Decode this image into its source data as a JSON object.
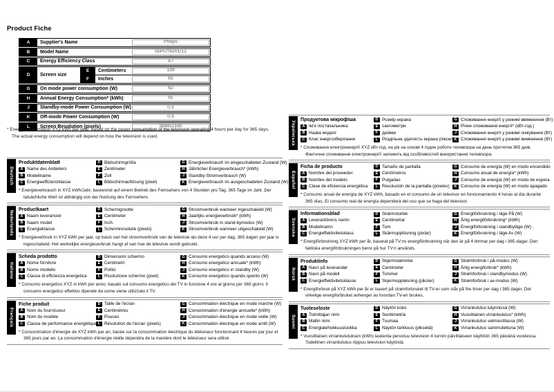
{
  "page": {
    "title": "Product Fiche"
  },
  "fiche_table": {
    "rows": [
      {
        "letter": "A",
        "label": "Supplier's Name",
        "value": "Philips"
      },
      {
        "letter": "B",
        "label": "Model Name",
        "value": "55PUT6201/12"
      },
      {
        "letter": "C",
        "label": "Energy Efficiency Class",
        "value": "A+"
      },
      {
        "letter": "D",
        "label": "Screen size",
        "sub": [
          {
            "letter": "E",
            "label": "Centimeters",
            "value": "139"
          },
          {
            "letter": "F",
            "label": "Inches",
            "value": "55"
          }
        ]
      },
      {
        "letter": "G",
        "label": "On mode power consumption (W)",
        "value": "62"
      },
      {
        "letter": "H",
        "label": "Annual Energy Consumption* (kWh)",
        "value": "91"
      },
      {
        "letter": "J",
        "label": "Standby-mode Power Consumption (W)",
        "value": "0.3"
      },
      {
        "letter": "K",
        "label": "Off-mode Power Consumption (W)",
        "value": "0.3"
      },
      {
        "letter": "L",
        "label": "Screen Resolution (pixels)",
        "value": "3840x2160"
      }
    ]
  },
  "footnote": {
    "line1": "* Energy consumption XYZ kWh per year, based on the power consumption of the television operating 4 hours per day for 365 days.",
    "line2": "The actual energy consumption will depend on how the television is used."
  },
  "sections": {
    "left": [
      {
        "language": "Deutsch",
        "title": "Produktdatenblatt",
        "col1": [
          {
            "letter": "A",
            "label": "Name des Anbieters"
          },
          {
            "letter": "B",
            "label": "Modellname"
          },
          {
            "letter": "C",
            "label": "Energieeffizienzklasse"
          }
        ],
        "col2": [
          {
            "letter": "D",
            "label": "Bildschirmgröße"
          },
          {
            "letter": "E",
            "label": "Zentimeter"
          },
          {
            "letter": "F",
            "label": "Zoll"
          },
          {
            "letter": "L",
            "label": "Bildschirmauflösung (pixel)"
          }
        ],
        "col3": [
          {
            "letter": "G",
            "label": "Energieverbrauch im eingeschalteten Zustand (W)"
          },
          {
            "letter": "H",
            "label": "Jährlicher Energieverbrauch* (kWh)"
          },
          {
            "letter": "J",
            "label": "Standby-Stromverbrauch (W)"
          },
          {
            "letter": "K",
            "label": "Energieverbrauch im ausgeschalteten Zustand (W)"
          }
        ],
        "footnote": "* Energieverbrauch in XYZ kWh/Jahr, basierend auf einem Betrieb des Fernsehers von 4 Stunden pro Tag, 365 Tage im Jahr. Der tatsächliche Wert ist abhängig von der Nutzung des Fernsehers."
      },
      {
        "language": "Nederlands",
        "title": "Productkaart",
        "col1": [
          {
            "letter": "A",
            "label": "Naam leverancier"
          },
          {
            "letter": "B",
            "label": "Naam model"
          },
          {
            "letter": "C",
            "label": "Energieklasse"
          }
        ],
        "col2": [
          {
            "letter": "D",
            "label": "Schermgrootte"
          },
          {
            "letter": "E",
            "label": "Centimeter"
          },
          {
            "letter": "F",
            "label": "Inch"
          },
          {
            "letter": "L",
            "label": "Schermresolutie (pixels)"
          }
        ],
        "col3": [
          {
            "letter": "G",
            "label": "Stroomverbruik wanneer ingeschakeld (W)"
          },
          {
            "letter": "H",
            "label": "Jaarlijks energieverbruik* (kWh)"
          },
          {
            "letter": "J",
            "label": "Stroomverbruik in stand-bymodus (W)"
          },
          {
            "letter": "K",
            "label": "Stroomverbruik wanneer uitgeschakeld (W)"
          }
        ],
        "footnote": "* Energieverbruik in XYZ kWh per jaar, op basis van het stroomverbruik van de televisie als deze 4 uur per dag, 365 dagen per jaar is ingeschakeld. Het werkelijke energieverbruik hangt af van hoe de televisie wordt gebruikt."
      },
      {
        "language": "Italiano",
        "title": "Scheda prodotto",
        "col1": [
          {
            "letter": "A",
            "label": "Nome fornitore"
          },
          {
            "letter": "B",
            "label": "Nome modello"
          },
          {
            "letter": "C",
            "label": "Classe di efficienza energetica"
          }
        ],
        "col2": [
          {
            "letter": "D",
            "label": "Dimensioni schermo"
          },
          {
            "letter": "E",
            "label": "Centimetri"
          },
          {
            "letter": "F",
            "label": "Pollici"
          },
          {
            "letter": "L",
            "label": "Risoluzione schermo (pixel)"
          }
        ],
        "col3": [
          {
            "letter": "G",
            "label": "Consumo energetico quando acceso (W)"
          },
          {
            "letter": "H",
            "label": "Consumo energetico annuale* (kWh)"
          },
          {
            "letter": "J",
            "label": "Consumo energetico in standby (W)"
          },
          {
            "letter": "K",
            "label": "Consumo energetico quando spento (W)"
          }
        ],
        "footnote": "* Consumo energetico XYZ in kWh per anno, basato sul consumo energetico del TV in funzione 4 ore al giorno per 365 giorni. Il consumo energetico effettivo dipende da come viene utilizzato il TV."
      },
      {
        "language": "Français",
        "title": "Fiche produit",
        "col1": [
          {
            "letter": "A",
            "label": "Nom du fournisseur"
          },
          {
            "letter": "B",
            "label": "Nom du modèle"
          },
          {
            "letter": "C",
            "label": "Classe de performance énergétique"
          }
        ],
        "col2": [
          {
            "letter": "D",
            "label": "Taille de l'écran"
          },
          {
            "letter": "E",
            "label": "Centimètres"
          },
          {
            "letter": "F",
            "label": "Pouces"
          },
          {
            "letter": "L",
            "label": "Résolution de l'écran (pixels)"
          }
        ],
        "col3": [
          {
            "letter": "G",
            "label": "Consommation électrique en mode marche (W)"
          },
          {
            "letter": "H",
            "label": "Consommation d'énergie annuelle* (kWh)"
          },
          {
            "letter": "J",
            "label": "Consommation électrique en mode veille (W)"
          },
          {
            "letter": "K",
            "label": "Consommation électrique en mode arrêt (W)"
          }
        ],
        "footnote": "* Consommation d'énergie de XYZ kWh par an, basée sur la consommation électrique du téléviseur fonctionnant 4 heures par jour et 365 jours par an. La consommation d'énergie réelle dépendra de la manière dont le téléviseur sera utilisé."
      }
    ],
    "right": [
      {
        "language": "Українська",
        "title": "Продуктова мікрофіша",
        "col1": [
          {
            "letter": "A",
            "label": "Ім'я постачальника"
          },
          {
            "letter": "B",
            "label": "Назва моделі"
          },
          {
            "letter": "C",
            "label": "Клас енергозберігання"
          }
        ],
        "col2": [
          {
            "letter": "D",
            "label": "Розмір екрана"
          },
          {
            "letter": "E",
            "label": "сантиметри"
          },
          {
            "letter": "F",
            "label": "дюйми"
          },
          {
            "letter": "L",
            "label": "Роздільна здатність екрана (пікселі)"
          }
        ],
        "col3": [
          {
            "letter": "G",
            "label": "Споживання енергії у режимі ввімкнення (Вт)"
          },
          {
            "letter": "H",
            "label": "Річне споживання енергії* (кВт-год.)"
          },
          {
            "letter": "J",
            "label": "Споживання енергії у режимі очікування (Вт)"
          },
          {
            "letter": "K",
            "label": "Споживання енергії у режимі вимкнення (Вт)"
          }
        ],
        "footnote": "* Споживання електроенергії XYZ кВт-год. на рік на основі 4 годин роботи телевізора на день протягом 365 днів. Фактичне споживання електроенергії залежить від особливостей використання телевізора."
      },
      {
        "language": "Español",
        "title": "Ficha de producto",
        "col1": [
          {
            "letter": "A",
            "label": "Nombre del proveedor"
          },
          {
            "letter": "B",
            "label": "Nombre del modelo"
          },
          {
            "letter": "C",
            "label": "Clase de eficiencia energética"
          }
        ],
        "col2": [
          {
            "letter": "D",
            "label": "Tamaño de pantalla"
          },
          {
            "letter": "E",
            "label": "Centímetros"
          },
          {
            "letter": "F",
            "label": "Pulgadas"
          },
          {
            "letter": "L",
            "label": "Resolución de la pantalla (píxeles)"
          }
        ],
        "col3": [
          {
            "letter": "G",
            "label": "Consumo de energía (W) en modo encendido"
          },
          {
            "letter": "H",
            "label": "Consumo anual de energía* (kWh)"
          },
          {
            "letter": "J",
            "label": "Consumo de energía (W) en modo de espera"
          },
          {
            "letter": "K",
            "label": "Consumo de energía (W) en modo apagado"
          }
        ],
        "footnote": "* Consumo anual de energía de XYZ kWh, basado en el consumo de un televisor en funcionamiento 4 horas al día durante 365 días. El consumo real de energía dependerá del uso que se haga del televisor."
      },
      {
        "language": "Svenska",
        "title": "Informationsblad",
        "col1": [
          {
            "letter": "A",
            "label": "Leverantörens namn"
          },
          {
            "letter": "B",
            "label": "Modellnamn"
          },
          {
            "letter": "C",
            "label": "Energieffektivitetsklass"
          }
        ],
        "col2": [
          {
            "letter": "D",
            "label": "Skärmstorlek"
          },
          {
            "letter": "E",
            "label": "Centimetrar"
          },
          {
            "letter": "F",
            "label": "Tum"
          },
          {
            "letter": "L",
            "label": "Skärmupplösning (pixlar)"
          }
        ],
        "col3": [
          {
            "letter": "G",
            "label": "Energiförbrukning i läge På (W)"
          },
          {
            "letter": "H",
            "label": "Årlig energiförbrukning* (kWh)"
          },
          {
            "letter": "J",
            "label": "Energiförbrukning i standbyläge (W)"
          },
          {
            "letter": "K",
            "label": "Energiförbrukning i läge Av (W)"
          }
        ],
        "footnote": "* Energiförbrukning XYZ kWh per år, baserat på TV:ns energiförbrukning när den är på 4 timmar per dag i 365 dagar. Den faktiska energiförbrukningen beror på hur TV:n används."
      },
      {
        "language": "Norsk",
        "title": "Produktinfo",
        "col1": [
          {
            "letter": "A",
            "label": "Navn på leverandør"
          },
          {
            "letter": "B",
            "label": "Navn på modell"
          },
          {
            "letter": "C",
            "label": "Energieffektivitetsklasse"
          }
        ],
        "col2": [
          {
            "letter": "D",
            "label": "Skjermstørrelse"
          },
          {
            "letter": "E",
            "label": "Centimeter"
          },
          {
            "letter": "F",
            "label": "Tommer"
          },
          {
            "letter": "L",
            "label": "Skjermoppløsning (piksler)"
          }
        ],
        "col3": [
          {
            "letter": "G",
            "label": "Strømforbruk i på-modus (W)"
          },
          {
            "letter": "H",
            "label": "Årlig energiforbruk* (kWh)"
          },
          {
            "letter": "J",
            "label": "Strømforbruk i standbymodus (W)"
          },
          {
            "letter": "K",
            "label": "Strømforbruk i av-modus (W)"
          }
        ],
        "footnote": "* Energiforbruk på XYZ kWh per år er basert på strømforbruket til TV-er som står på fire timer per dag i 365 dager. Det virkelige energiforbruket avhenger av hvordan TV-en brukes."
      },
      {
        "language": "Suomi",
        "title": "Tuoteseloste",
        "col1": [
          {
            "letter": "A",
            "label": "Toimittajan nimi"
          },
          {
            "letter": "B",
            "label": "Mallin nimi"
          },
          {
            "letter": "C",
            "label": "Energiatehokkuusluokka"
          }
        ],
        "col2": [
          {
            "letter": "D",
            "label": "Näytön koko"
          },
          {
            "letter": "E",
            "label": "Senttimetriä"
          },
          {
            "letter": "F",
            "label": "Tuumaa"
          },
          {
            "letter": "L",
            "label": "Näytön tarkkuus (pikseliä)"
          }
        ],
        "col3": [
          {
            "letter": "G",
            "label": "Virrankulutus käynnissä (W)"
          },
          {
            "letter": "H",
            "label": "Vuosittainen virrankulutus* (kWh)"
          },
          {
            "letter": "J",
            "label": "Virrankulutus valmiustilassa (W)"
          },
          {
            "letter": "K",
            "label": "Virrankulutus sammutettuna (W)"
          }
        ],
        "footnote": "* Vuosittaisen virrankulutuksen (kWh) laskenta perustuu television 4 tunnin päivittäiseen käyttöön 365 päivänä vuodessa. Todellinen virrankulutus riippuu television käytöstä."
      }
    ]
  }
}
